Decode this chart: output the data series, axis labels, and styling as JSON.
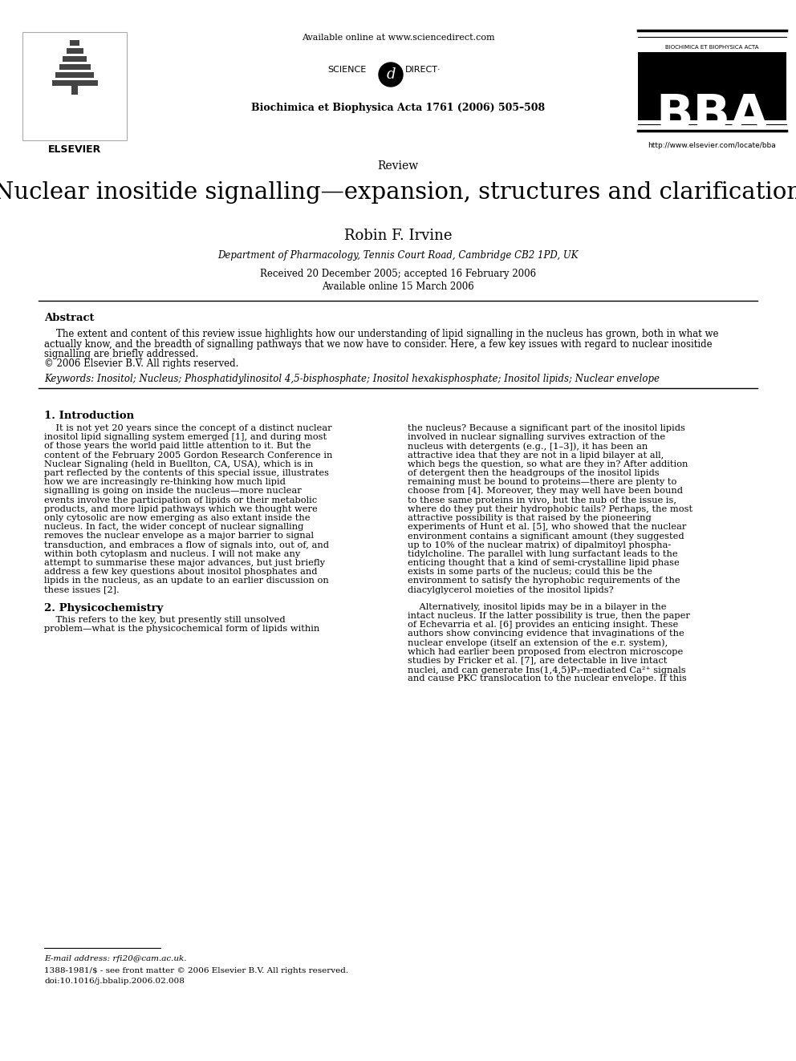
{
  "bg_color": "#ffffff",
  "header": {
    "available_online": "Available online at www.sciencedirect.com",
    "journal_info": "Biochimica et Biophysica Acta 1761 (2006) 505–508",
    "url": "http://www.elsevier.com/locate/bba",
    "elsevier_text": "ELSEVIER",
    "bba_text": "BBA",
    "bba_subtext": "BIOCHIMICA ET BIOPHYSICA ACTA",
    "science_text": "SCIENCE",
    "direct_text": "DIRECT·"
  },
  "article_type": "Review",
  "title": "Nuclear inositide signalling—expansion, structures and clarification",
  "author": "Robin F. Irvine",
  "affiliation": "Department of Pharmacology, Tennis Court Road, Cambridge CB2 1PD, UK",
  "received": "Received 20 December 2005; accepted 16 February 2006",
  "available": "Available online 15 March 2006",
  "abstract_title": "Abstract",
  "abstract_lines": [
    "    The extent and content of this review issue highlights how our understanding of lipid signalling in the nucleus has grown, both in what we",
    "actually know, and the breadth of signalling pathways that we now have to consider. Here, a few key issues with regard to nuclear inositide",
    "signalling are briefly addressed.",
    "© 2006 Elsevier B.V. All rights reserved."
  ],
  "keywords": "Keywords: Inositol; Nucleus; Phosphatidylinositol 4,5-bisphosphate; Inositol hexakisphosphate; Inositol lipids; Nuclear envelope",
  "section1_title": "1. Introduction",
  "section1_col1_lines": [
    "    It is not yet 20 years since the concept of a distinct nuclear",
    "inositol lipid signalling system emerged [1], and during most",
    "of those years the world paid little attention to it. But the",
    "content of the February 2005 Gordon Research Conference in",
    "Nuclear Signaling (held in Buellton, CA, USA), which is in",
    "part reflected by the contents of this special issue, illustrates",
    "how we are increasingly re-thinking how much lipid",
    "signalling is going on inside the nucleus—more nuclear",
    "events involve the participation of lipids or their metabolic",
    "products, and more lipid pathways which we thought were",
    "only cytosolic are now emerging as also extant inside the",
    "nucleus. In fact, the wider concept of nuclear signalling",
    "removes the nuclear envelope as a major barrier to signal",
    "transduction, and embraces a flow of signals into, out of, and",
    "within both cytoplasm and nucleus. I will not make any",
    "attempt to summarise these major advances, but just briefly",
    "address a few key questions about inositol phosphates and",
    "lipids in the nucleus, as an update to an earlier discussion on",
    "these issues [2]."
  ],
  "section1_col2_lines": [
    "the nucleus? Because a significant part of the inositol lipids",
    "involved in nuclear signalling survives extraction of the",
    "nucleus with detergents (e.g., [1–3]), it has been an",
    "attractive idea that they are not in a lipid bilayer at all,",
    "which begs the question, so what are they in? After addition",
    "of detergent then the headgroups of the inositol lipids",
    "remaining must be bound to proteins—there are plenty to",
    "choose from [4]. Moreover, they may well have been bound",
    "to these same proteins in vivo, but the nub of the issue is,",
    "where do they put their hydrophobic tails? Perhaps, the most",
    "attractive possibility is that raised by the pioneering",
    "experiments of Hunt et al. [5], who showed that the nuclear",
    "environment contains a significant amount (they suggested",
    "up to 10% of the nuclear matrix) of dipalmitoyl phospha-",
    "tidylcholine. The parallel with lung surfactant leads to the",
    "enticing thought that a kind of semi-crystalline lipid phase",
    "exists in some parts of the nucleus; could this be the",
    "environment to satisfy the hyrophobic requirements of the",
    "diacylglycerol moieties of the inositol lipids?"
  ],
  "section2_title": "2. Physicochemistry",
  "section2_col1_lines": [
    "    This refers to the key, but presently still unsolved",
    "problem—what is the physicochemical form of lipids within"
  ],
  "section2_col2_lines": [
    "    Alternatively, inositol lipids may be in a bilayer in the",
    "intact nucleus. If the latter possibility is true, then the paper",
    "of Echevarria et al. [6] provides an enticing insight. These",
    "authors show convincing evidence that invaginations of the",
    "nuclear envelope (itself an extension of the e.r. system),",
    "which had earlier been proposed from electron microscope",
    "studies by Fricker et al. [7], are detectable in live intact",
    "nuclei, and can generate Ins(1,4,5)P₃-mediated Ca²⁺ signals",
    "and cause PKC translocation to the nuclear envelope. If this"
  ],
  "footnote_line": "E-mail address: rfi20@cam.ac.uk.",
  "footnote_issn": "1388-1981/$ - see front matter © 2006 Elsevier B.V. All rights reserved.",
  "footnote_doi": "doi:10.1016/j.bbalip.2006.02.008"
}
